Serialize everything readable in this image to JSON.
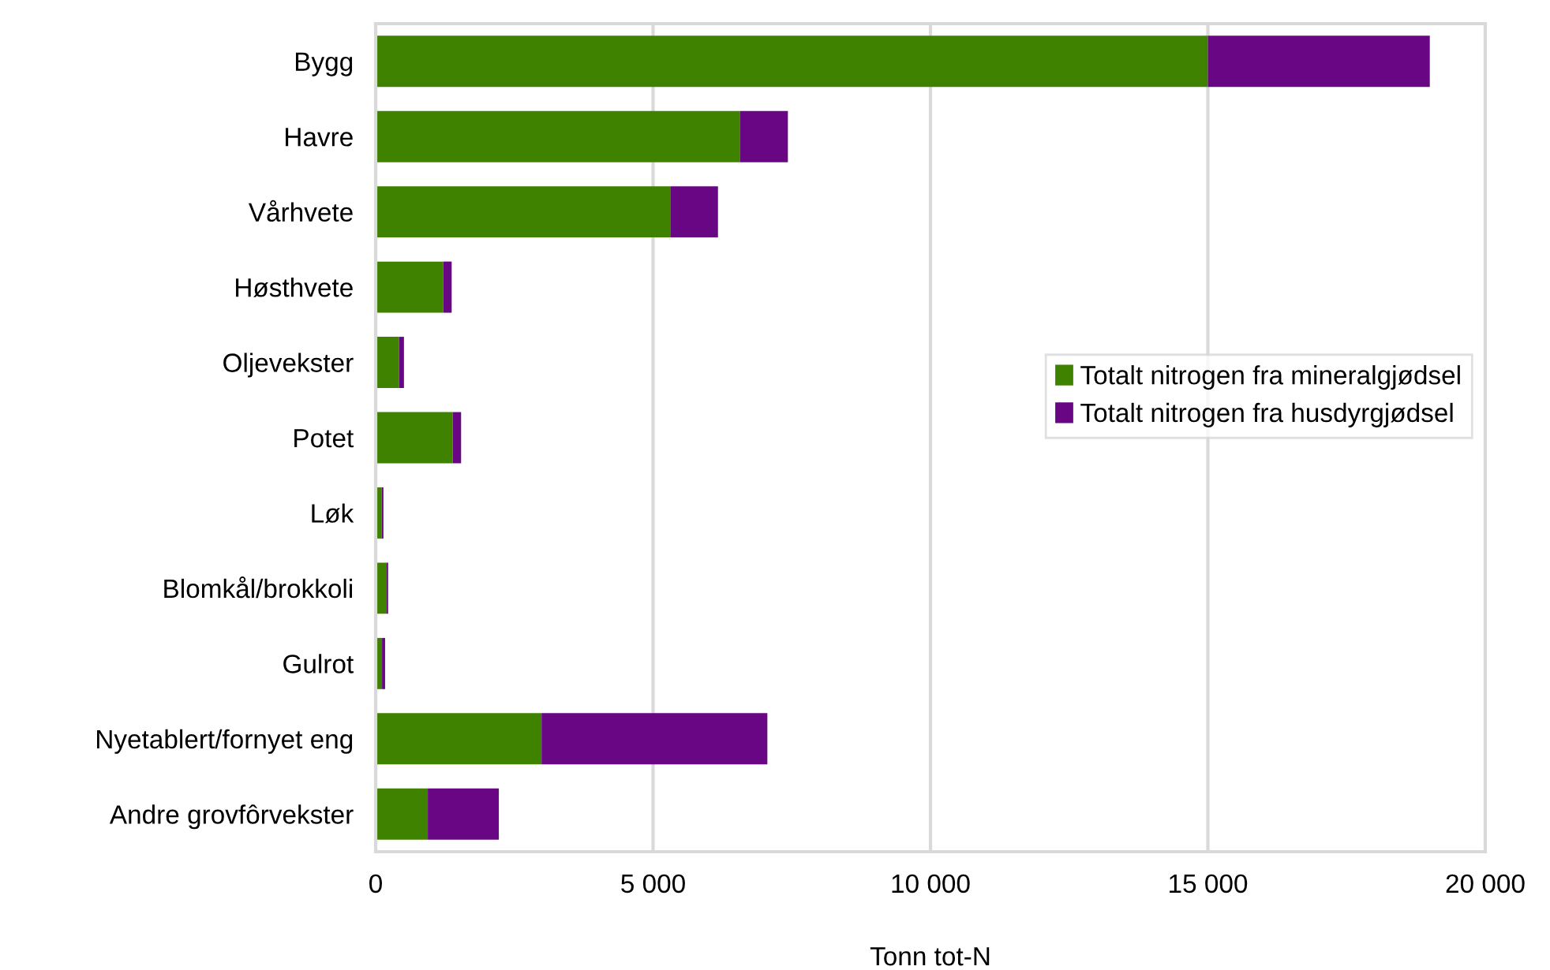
{
  "chart_data": {
    "type": "bar",
    "orientation": "horizontal",
    "stacked": true,
    "categories": [
      "Bygg",
      "Havre",
      "Vårhvete",
      "Høsthvete",
      "Oljevekster",
      "Potet",
      "Løk",
      "Blomkål/brokkoli",
      "Gulrot",
      "Nyetablert/fornyet eng",
      "Andre grovfôrvekster"
    ],
    "series": [
      {
        "name": "Totalt nitrogen fra mineralgjødsel",
        "color": "#3f8200",
        "values": [
          15000,
          6570,
          5320,
          1220,
          420,
          1390,
          110,
          200,
          115,
          2990,
          940
        ]
      },
      {
        "name": "Totalt nitrogen fra husdyrgjødsel",
        "color": "#680684",
        "values": [
          4000,
          860,
          850,
          150,
          90,
          150,
          30,
          25,
          55,
          4070,
          1280
        ]
      }
    ],
    "xlabel": "Tonn tot-N",
    "xlim": [
      0,
      20000
    ],
    "xticks": [
      0,
      {
        "value": 5000,
        "label": "5 000"
      },
      {
        "value": 10000,
        "label": "10 000"
      },
      {
        "value": 15000,
        "label": "15 000"
      },
      {
        "value": 20000,
        "label": "20 000"
      }
    ],
    "grid": "x",
    "legend": "center right"
  }
}
